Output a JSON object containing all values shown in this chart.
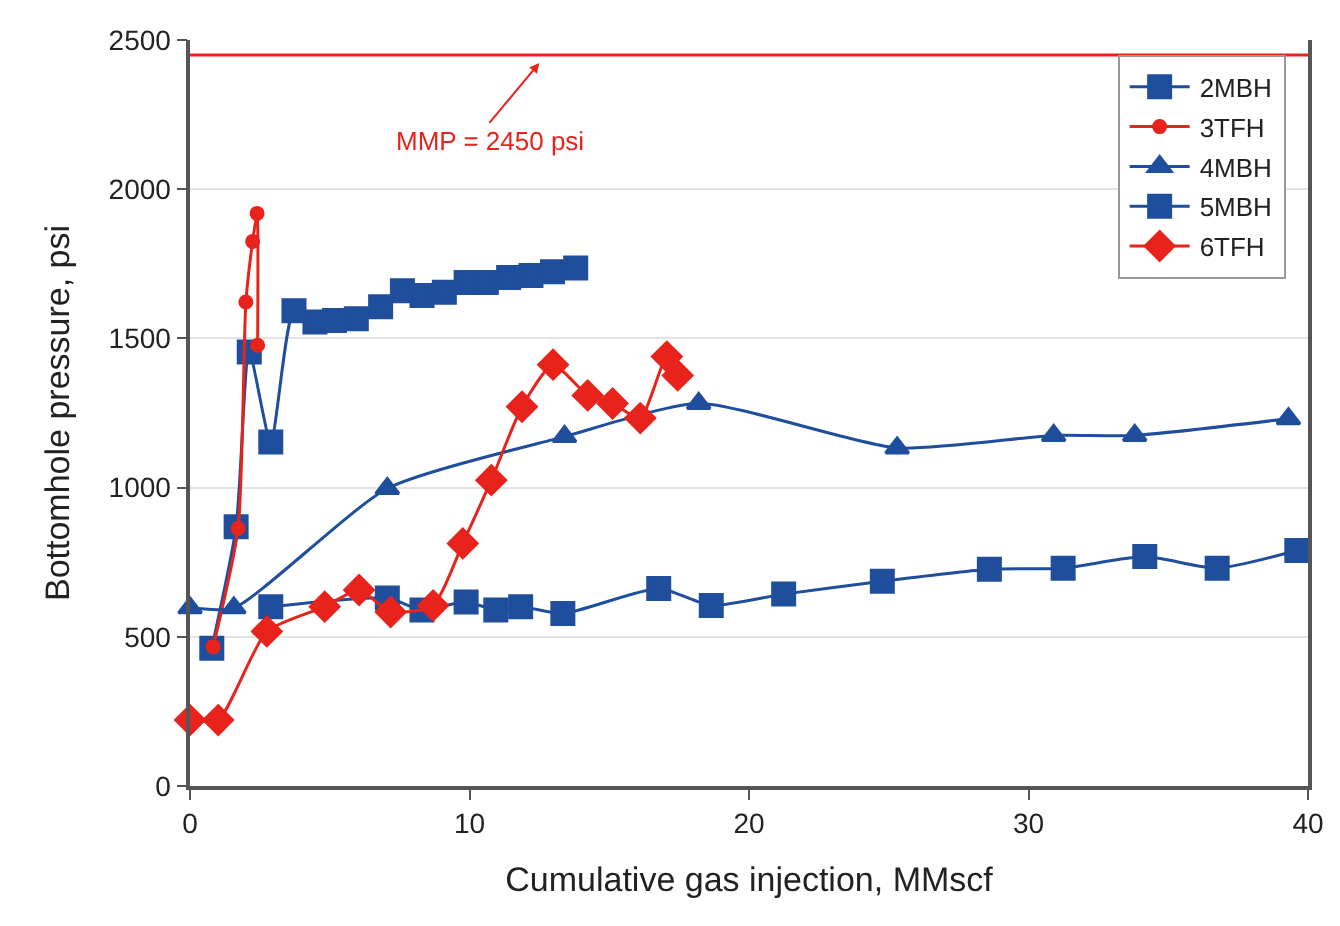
{
  "chart_data": {
    "type": "line",
    "xlabel": "Cumulative gas injection, MMscf",
    "ylabel": "Bottomhole pressure, psi",
    "xlim": [
      0,
      40
    ],
    "xticks": [
      0,
      10,
      20,
      30,
      40
    ],
    "ylim": [
      0,
      2500
    ],
    "yticks": [
      0,
      500,
      1000,
      1500,
      2000,
      2500
    ],
    "grid": "y",
    "legend": "top right",
    "line_style": "solid",
    "series": [
      {
        "name": "2MBH",
        "color": "#1f4e9c",
        "marker": "square",
        "x": [
          0.78,
          1.65,
          2.12,
          2.89,
          3.72,
          4.47,
          5.17,
          5.95,
          6.82,
          7.6,
          8.3,
          9.1,
          9.88,
          10.6,
          11.4,
          12.2,
          12.97,
          13.8
        ],
        "values": [
          462,
          869,
          1454,
          1153,
          1593,
          1555,
          1560,
          1566,
          1606,
          1660,
          1644,
          1655,
          1687,
          1687,
          1704,
          1711,
          1723,
          1736
        ]
      },
      {
        "name": "3TFH",
        "color": "#e8231b",
        "marker": "circle",
        "x": [
          0.83,
          1.72,
          2.0,
          2.24,
          2.4,
          2.42
        ],
        "values": [
          467,
          863,
          1622,
          1825,
          1919,
          1477
        ]
      },
      {
        "name": "4MBH",
        "color": "#1f4e9c",
        "marker": "triangle",
        "x": [
          0,
          1.57,
          7.06,
          13.4,
          18.2,
          25.3,
          30.9,
          33.8,
          39.3
        ],
        "values": [
          597,
          597,
          997,
          1171,
          1282,
          1133,
          1175,
          1175,
          1231
        ]
      },
      {
        "name": "5MBH",
        "color": "#1f4e9c",
        "marker": "square",
        "x": [
          2.89,
          7.06,
          8.3,
          9.88,
          10.94,
          11.83,
          13.34,
          16.77,
          18.65,
          21.24,
          24.77,
          28.6,
          31.24,
          34.16,
          36.75,
          39.6
        ],
        "values": [
          601,
          630,
          590,
          617,
          590,
          601,
          578,
          662,
          605,
          643,
          686,
          726,
          730,
          769,
          730,
          789
        ]
      },
      {
        "name": "6TFH",
        "color": "#e8231b",
        "marker": "diamond",
        "x": [
          0,
          1.01,
          2.75,
          4.82,
          6.05,
          7.18,
          8.7,
          9.76,
          10.78,
          11.88,
          12.99,
          14.23,
          15.12,
          16.11,
          17.06,
          17.45
        ],
        "values": [
          221,
          221,
          518,
          601,
          657,
          583,
          605,
          813,
          1025,
          1271,
          1412,
          1309,
          1282,
          1233,
          1439,
          1376
        ]
      }
    ],
    "ref_lines": [
      {
        "axis": "y",
        "value": 2450,
        "color": "#e8231b",
        "line_style": "solid"
      }
    ],
    "annotations": [
      {
        "text": "MMP = 2450 psi",
        "x": 12.5,
        "y": 2450
      }
    ]
  }
}
